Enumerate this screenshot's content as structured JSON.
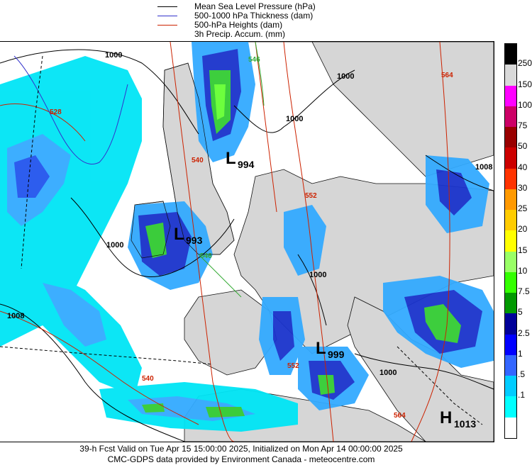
{
  "legend": {
    "items": [
      {
        "label": "Mean Sea Level Pressure (hPa)",
        "color": "#000000"
      },
      {
        "label": "500-1000 hPa Thickness (dam)",
        "color": "#3333cc"
      },
      {
        "label": "500-hPa Heights (dam)",
        "color": "#cc2200"
      },
      {
        "label": "3h Precip. Accum. (mm)",
        "color": ""
      }
    ]
  },
  "colorbar": {
    "labels": [
      "250",
      "150",
      "100",
      "75",
      "50",
      "40",
      "30",
      "25",
      "20",
      "15",
      "10",
      "7.5",
      "5",
      "2.5",
      "1",
      ".5",
      ".1"
    ],
    "colors": [
      "#000000",
      "#d9d9d9",
      "#ff00ff",
      "#cc0066",
      "#990000",
      "#cc0000",
      "#ff3300",
      "#ff9900",
      "#ffcc00",
      "#ffff00",
      "#99ff66",
      "#33ff00",
      "#009900",
      "#000099",
      "#0000ff",
      "#3366ff",
      "#00ccff",
      "#00ffff",
      "#ffffff"
    ]
  },
  "map": {
    "pressure_centers": [
      {
        "type": "L",
        "value": "994"
      },
      {
        "type": "L",
        "value": "993"
      },
      {
        "type": "L",
        "value": "999"
      },
      {
        "type": "H",
        "value": "1013"
      }
    ],
    "isobar_labels": [
      "1000",
      "1000",
      "1000",
      "1000",
      "1000",
      "1000",
      "1008",
      "1008"
    ],
    "height_labels": [
      "528",
      "540",
      "540",
      "546",
      "546",
      "552",
      "552",
      "564",
      "564"
    ]
  },
  "footer": {
    "line1": "39-h Fcst Valid on Tue Apr 15 15:00:00 2025, Initialized on Mon Apr 14 00:00:00 2025",
    "line2": "CMC-GDPS data provided by Environment Canada - meteocentre.com"
  }
}
